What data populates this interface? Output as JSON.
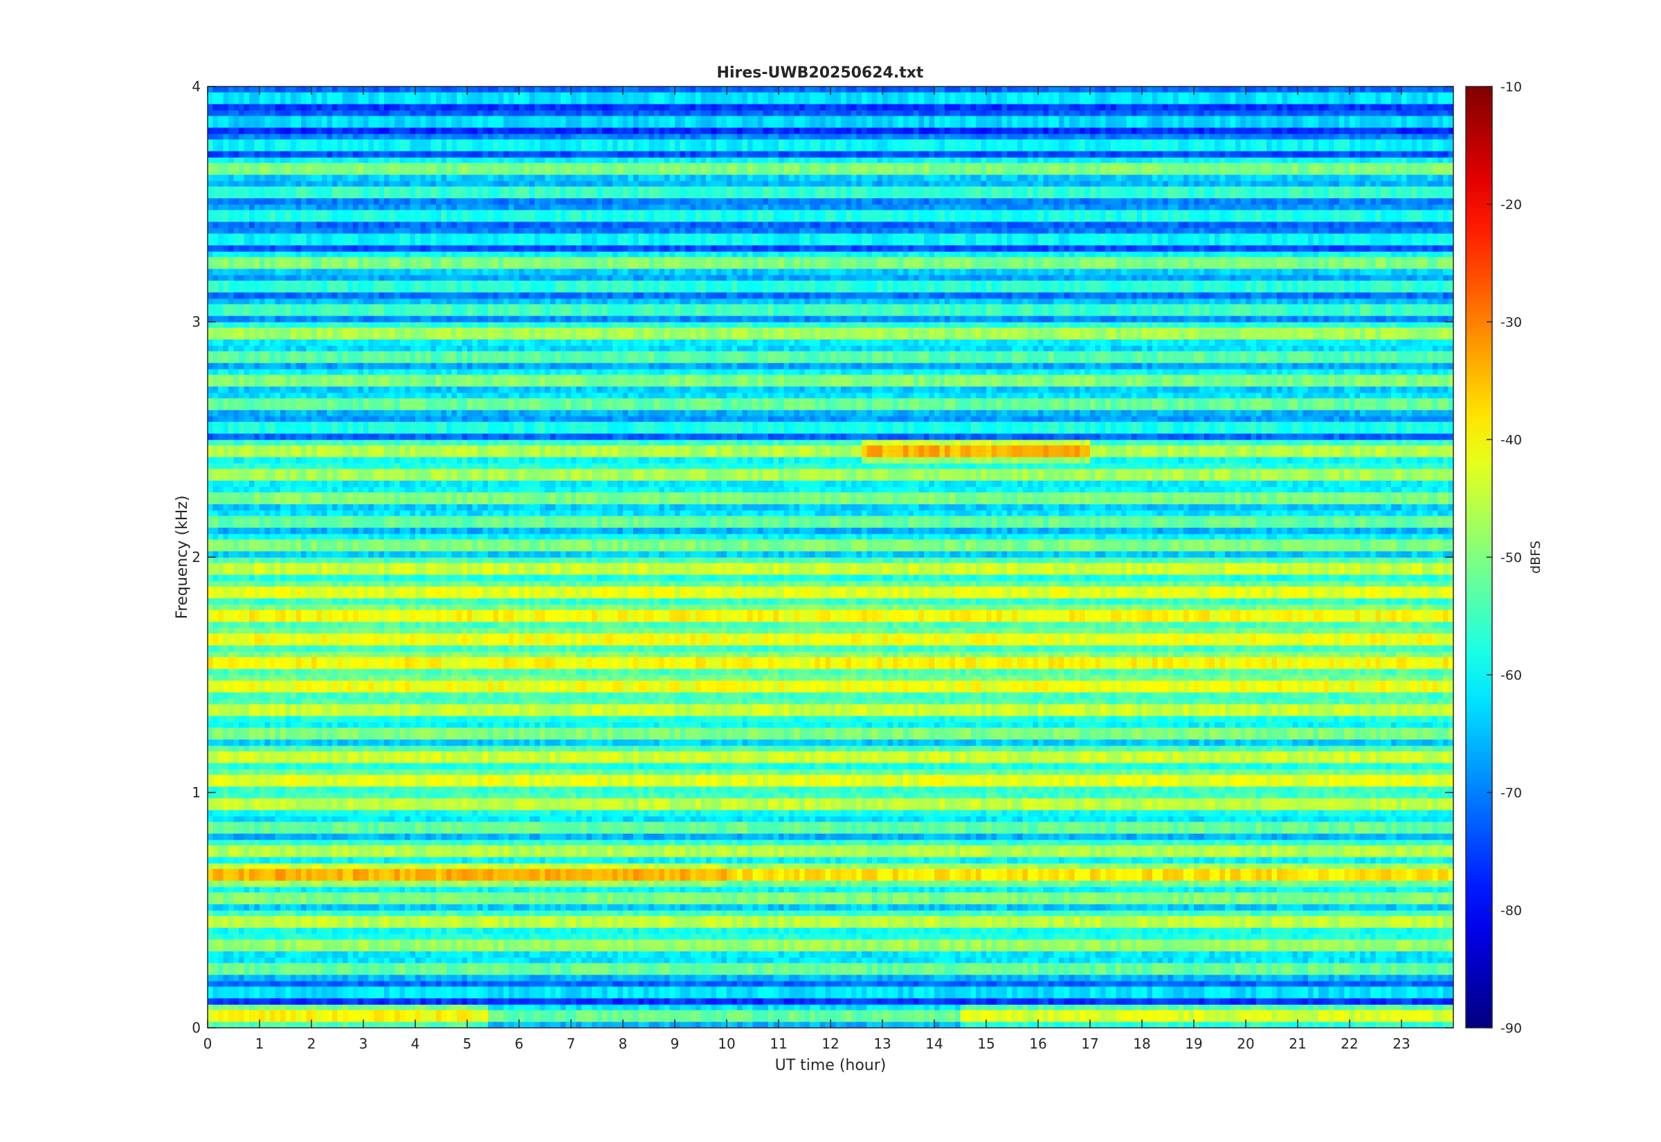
{
  "chart_data": {
    "type": "heatmap",
    "title": "Hires-UWB20250624.txt",
    "xlabel": "UT time (hour)",
    "ylabel": "Frequency (kHz)",
    "colorbar_label": "dBFS",
    "xlim": [
      0,
      24
    ],
    "ylim": [
      0,
      4
    ],
    "clim": [
      -90,
      -10
    ],
    "colormap": "jet",
    "x_ticks": [
      0,
      1,
      2,
      3,
      4,
      5,
      6,
      7,
      8,
      9,
      10,
      11,
      12,
      13,
      14,
      15,
      16,
      17,
      18,
      19,
      20,
      21,
      22,
      23
    ],
    "y_ticks": [
      0,
      1,
      2,
      3,
      4
    ],
    "colorbar_ticks": [
      -10,
      -20,
      -30,
      -40,
      -50,
      -60,
      -70,
      -80,
      -90
    ],
    "background_level_dbfs": -60,
    "bands": [
      {
        "freq_khz": 0.05,
        "level_dbfs": -43,
        "segments": [
          {
            "from_hour": 0,
            "to_hour": 5.4,
            "level_dbfs": -40
          },
          {
            "from_hour": 5.4,
            "to_hour": 14.5,
            "level_dbfs": -52
          }
        ]
      },
      {
        "freq_khz": 0.15,
        "level_dbfs": -62
      },
      {
        "freq_khz": 0.25,
        "level_dbfs": -52
      },
      {
        "freq_khz": 0.35,
        "level_dbfs": -48
      },
      {
        "freq_khz": 0.45,
        "level_dbfs": -45
      },
      {
        "freq_khz": 0.55,
        "level_dbfs": -50
      },
      {
        "freq_khz": 0.65,
        "level_dbfs": -38,
        "segments": [
          {
            "from_hour": 0,
            "to_hour": 10,
            "level_dbfs": -34
          }
        ]
      },
      {
        "freq_khz": 0.75,
        "level_dbfs": -46
      },
      {
        "freq_khz": 0.85,
        "level_dbfs": -52
      },
      {
        "freq_khz": 0.95,
        "level_dbfs": -45
      },
      {
        "freq_khz": 1.05,
        "level_dbfs": -42
      },
      {
        "freq_khz": 1.15,
        "level_dbfs": -44
      },
      {
        "freq_khz": 1.25,
        "level_dbfs": -50
      },
      {
        "freq_khz": 1.35,
        "level_dbfs": -44
      },
      {
        "freq_khz": 1.45,
        "level_dbfs": -41
      },
      {
        "freq_khz": 1.55,
        "level_dbfs": -40
      },
      {
        "freq_khz": 1.65,
        "level_dbfs": -41
      },
      {
        "freq_khz": 1.75,
        "level_dbfs": -40
      },
      {
        "freq_khz": 1.85,
        "level_dbfs": -42
      },
      {
        "freq_khz": 1.95,
        "level_dbfs": -44
      },
      {
        "freq_khz": 2.05,
        "level_dbfs": -50
      },
      {
        "freq_khz": 2.15,
        "level_dbfs": -52
      },
      {
        "freq_khz": 2.25,
        "level_dbfs": -50
      },
      {
        "freq_khz": 2.35,
        "level_dbfs": -47
      },
      {
        "freq_khz": 2.45,
        "level_dbfs": -46,
        "segments": [
          {
            "from_hour": 12.6,
            "to_hour": 17,
            "level_dbfs": -34
          }
        ]
      },
      {
        "freq_khz": 2.55,
        "level_dbfs": -58
      },
      {
        "freq_khz": 2.65,
        "level_dbfs": -52
      },
      {
        "freq_khz": 2.75,
        "level_dbfs": -50
      },
      {
        "freq_khz": 2.85,
        "level_dbfs": -53
      },
      {
        "freq_khz": 2.95,
        "level_dbfs": -47
      },
      {
        "freq_khz": 3.05,
        "level_dbfs": -55
      },
      {
        "freq_khz": 3.15,
        "level_dbfs": -57
      },
      {
        "freq_khz": 3.25,
        "level_dbfs": -50
      },
      {
        "freq_khz": 3.35,
        "level_dbfs": -60
      },
      {
        "freq_khz": 3.45,
        "level_dbfs": -58
      },
      {
        "freq_khz": 3.55,
        "level_dbfs": -56
      },
      {
        "freq_khz": 3.65,
        "level_dbfs": -50
      },
      {
        "freq_khz": 3.75,
        "level_dbfs": -60
      },
      {
        "freq_khz": 3.85,
        "level_dbfs": -63
      },
      {
        "freq_khz": 3.95,
        "level_dbfs": -62
      }
    ]
  }
}
